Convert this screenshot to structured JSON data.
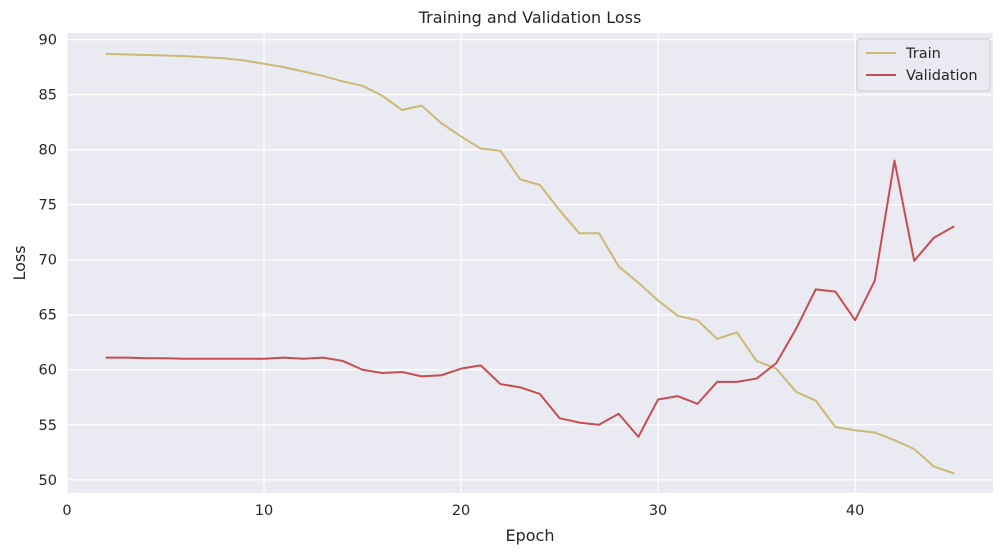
{
  "chart_data": {
    "type": "line",
    "title": "Training and Validation Loss",
    "xlabel": "Epoch",
    "ylabel": "Loss",
    "xlim": [
      0,
      47
    ],
    "ylim": [
      48.8,
      90.6
    ],
    "xticks": [
      0,
      10,
      20,
      30,
      40
    ],
    "yticks": [
      50,
      55,
      60,
      65,
      70,
      75,
      80,
      85,
      90
    ],
    "grid": true,
    "legend_position": "top-right",
    "background": "#eaeaf2",
    "x": [
      2,
      3,
      4,
      5,
      6,
      7,
      8,
      9,
      10,
      11,
      12,
      13,
      14,
      15,
      16,
      17,
      18,
      19,
      20,
      21,
      22,
      23,
      24,
      25,
      26,
      27,
      28,
      29,
      30,
      31,
      32,
      33,
      34,
      35,
      36,
      37,
      38,
      39,
      40,
      41,
      42,
      43,
      44,
      45
    ],
    "series": [
      {
        "name": "Train",
        "color": "#ccb974",
        "values": [
          88.7,
          88.65,
          88.6,
          88.55,
          88.5,
          88.4,
          88.3,
          88.1,
          87.8,
          87.5,
          87.1,
          86.7,
          86.2,
          85.8,
          84.9,
          83.6,
          84.0,
          82.4,
          81.2,
          80.1,
          79.9,
          77.3,
          76.8,
          74.5,
          72.4,
          72.4,
          69.4,
          67.9,
          66.3,
          64.9,
          64.5,
          62.8,
          63.4,
          60.8,
          60.1,
          58.0,
          57.2,
          54.8,
          54.5,
          54.3,
          53.6,
          52.8,
          51.2,
          50.6
        ]
      },
      {
        "name": "Validation",
        "color": "#c44e52",
        "values": [
          61.1,
          61.1,
          61.05,
          61.05,
          61.0,
          61.0,
          61.0,
          61.0,
          61.0,
          61.1,
          61.0,
          61.1,
          60.8,
          60.0,
          59.7,
          59.8,
          59.4,
          59.5,
          60.1,
          60.4,
          58.7,
          58.4,
          57.8,
          55.6,
          55.2,
          55.0,
          56.0,
          53.9,
          57.3,
          57.6,
          56.9,
          58.9,
          58.9,
          59.2,
          60.6,
          63.7,
          67.3,
          67.1,
          64.5,
          68.1,
          79.0,
          69.9,
          72.0,
          73.0
        ]
      }
    ]
  }
}
